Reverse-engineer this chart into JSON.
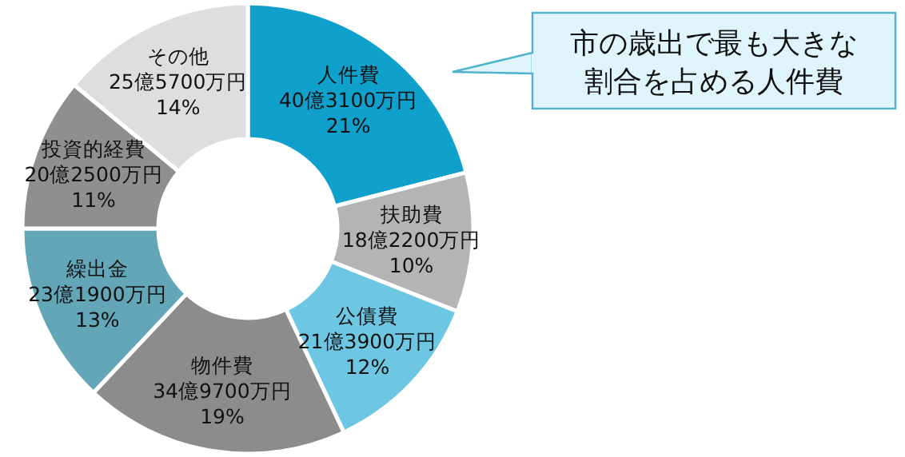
{
  "chart_data": {
    "type": "donut",
    "categories": [
      "人件費",
      "扶助費",
      "公債費",
      "物件費",
      "繰出金",
      "投資的経費",
      "その他"
    ],
    "values": [
      21,
      10,
      12,
      19,
      13,
      11,
      14
    ],
    "value_labels": [
      "40億3100万円\n21%",
      "18億2200万円\n10%",
      "21億3900万円\n12%",
      "34億9700万円\n19%",
      "23億1900万円\n13%",
      "20億2500万円\n11%",
      "25億5700万円\n14%"
    ],
    "colors": [
      "#0fa0cc",
      "#b4b4b4",
      "#6dc7e3",
      "#8c8c8c",
      "#62a6b8",
      "#8f8f8f",
      "#dedede"
    ],
    "annotations": [
      "市の歳出で最も大きな",
      "割合を占める人件費"
    ]
  }
}
